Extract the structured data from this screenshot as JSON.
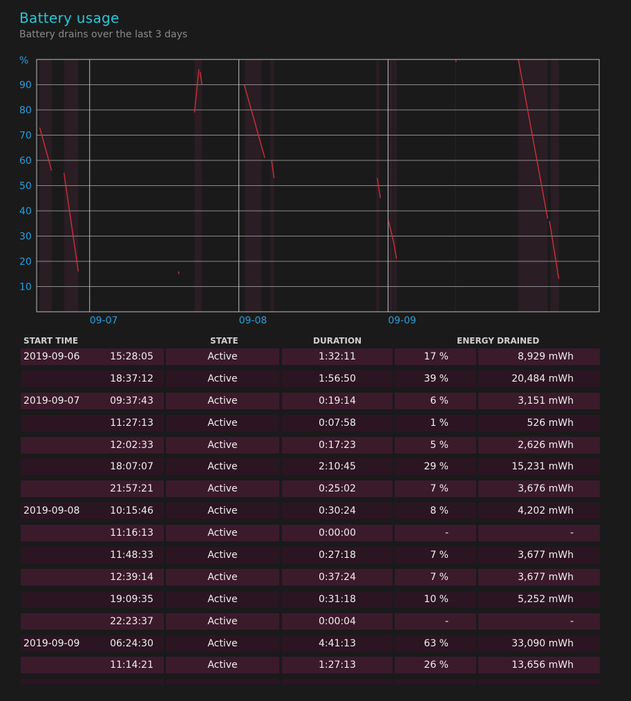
{
  "header": {
    "title": "Battery usage",
    "subtitle": "Battery drains over the last 3 days"
  },
  "chart_data": {
    "type": "line",
    "ylabel": "%",
    "yticks": [
      "90",
      "80",
      "70",
      "60",
      "50",
      "40",
      "30",
      "20",
      "10"
    ],
    "xticks": [
      "09-07",
      "09-08",
      "09-09"
    ],
    "ylim": [
      0,
      100
    ],
    "grid": true,
    "series_color": "#d0303a",
    "shading_color": "#2a1d24",
    "segments": [
      {
        "x": [
          0.5,
          2.4
        ],
        "y": [
          73,
          56
        ]
      },
      {
        "x": [
          4.4,
          6.7
        ],
        "y": [
          55,
          16
        ]
      },
      {
        "x": [
          22.8,
          22.9
        ],
        "y": [
          16,
          15
        ]
      },
      {
        "x": [
          25.4,
          26.1
        ],
        "y": [
          79,
          96
        ]
      },
      {
        "x": [
          26.3,
          26.6
        ],
        "y": [
          95,
          90
        ]
      },
      {
        "x": [
          33.4,
          36.7
        ],
        "y": [
          90,
          61
        ]
      },
      {
        "x": [
          37.8,
          38.2
        ],
        "y": [
          60,
          53
        ]
      },
      {
        "x": [
          54.8,
          55.3
        ],
        "y": [
          53,
          45
        ]
      },
      {
        "x": [
          56.6,
          57.4
        ],
        "y": [
          36,
          28
        ]
      },
      {
        "x": [
          57.4,
          57.9
        ],
        "y": [
          28,
          21
        ]
      },
      {
        "x": [
          67.4,
          67.5
        ],
        "y": [
          100,
          99
        ]
      },
      {
        "x": [
          77.5,
          82.2
        ],
        "y": [
          100,
          37
        ]
      },
      {
        "x": [
          82.5,
          84.0
        ],
        "y": [
          36,
          13
        ]
      }
    ],
    "active_periods": [
      [
        0.5,
        2.4
      ],
      [
        4.4,
        6.7
      ],
      [
        25.4,
        26.6
      ],
      [
        33.5,
        36.2
      ],
      [
        37.6,
        38.2
      ],
      [
        54.6,
        55.1
      ],
      [
        56.6,
        57.3
      ],
      [
        57.4,
        57.9
      ],
      [
        67.3,
        67.4
      ],
      [
        77.5,
        82.2
      ],
      [
        82.7,
        84.0
      ]
    ]
  },
  "table": {
    "headers": {
      "start_time": "START TIME",
      "state": "STATE",
      "duration": "DURATION",
      "energy": "ENERGY DRAINED"
    },
    "rows": [
      {
        "date": "2019-09-06",
        "time": "15:28:05",
        "state": "Active",
        "duration": "1:32:11",
        "percent": "17 %",
        "energy": "8,929 mWh"
      },
      {
        "date": "",
        "time": "18:37:12",
        "state": "Active",
        "duration": "1:56:50",
        "percent": "39 %",
        "energy": "20,484 mWh"
      },
      {
        "date": "2019-09-07",
        "time": "09:37:43",
        "state": "Active",
        "duration": "0:19:14",
        "percent": "6 %",
        "energy": "3,151 mWh"
      },
      {
        "date": "",
        "time": "11:27:13",
        "state": "Active",
        "duration": "0:07:58",
        "percent": "1 %",
        "energy": "526 mWh"
      },
      {
        "date": "",
        "time": "12:02:33",
        "state": "Active",
        "duration": "0:17:23",
        "percent": "5 %",
        "energy": "2,626 mWh"
      },
      {
        "date": "",
        "time": "18:07:07",
        "state": "Active",
        "duration": "2:10:45",
        "percent": "29 %",
        "energy": "15,231 mWh"
      },
      {
        "date": "",
        "time": "21:57:21",
        "state": "Active",
        "duration": "0:25:02",
        "percent": "7 %",
        "energy": "3,676 mWh"
      },
      {
        "date": "2019-09-08",
        "time": "10:15:46",
        "state": "Active",
        "duration": "0:30:24",
        "percent": "8 %",
        "energy": "4,202 mWh"
      },
      {
        "date": "",
        "time": "11:16:13",
        "state": "Active",
        "duration": "0:00:00",
        "percent": "-",
        "energy": "-"
      },
      {
        "date": "",
        "time": "11:48:33",
        "state": "Active",
        "duration": "0:27:18",
        "percent": "7 %",
        "energy": "3,677 mWh"
      },
      {
        "date": "",
        "time": "12:39:14",
        "state": "Active",
        "duration": "0:37:24",
        "percent": "7 %",
        "energy": "3,677 mWh"
      },
      {
        "date": "",
        "time": "19:09:35",
        "state": "Active",
        "duration": "0:31:18",
        "percent": "10 %",
        "energy": "5,252 mWh"
      },
      {
        "date": "",
        "time": "22:23:37",
        "state": "Active",
        "duration": "0:00:04",
        "percent": "-",
        "energy": "-"
      },
      {
        "date": "2019-09-09",
        "time": "06:24:30",
        "state": "Active",
        "duration": "4:41:13",
        "percent": "63 %",
        "energy": "33,090 mWh"
      },
      {
        "date": "",
        "time": "11:14:21",
        "state": "Active",
        "duration": "1:27:13",
        "percent": "26 %",
        "energy": "13,656 mWh"
      }
    ]
  }
}
